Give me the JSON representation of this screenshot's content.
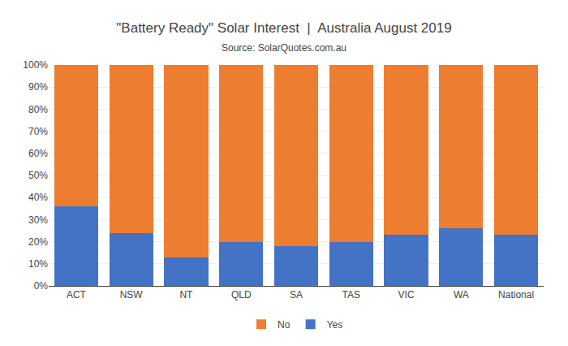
{
  "chart_data": {
    "type": "bar",
    "stacked": true,
    "title": "\"Battery Ready\" Solar Interest  |  Australia August 2019",
    "subtitle": "Source: SolarQuotes.com.au",
    "categories": [
      "ACT",
      "NSW",
      "NT",
      "QLD",
      "SA",
      "TAS",
      "VIC",
      "WA",
      "National"
    ],
    "series": [
      {
        "name": "Yes",
        "color": "#4472C4",
        "values": [
          36,
          24,
          13,
          20,
          18,
          20,
          23,
          26,
          23
        ]
      },
      {
        "name": "No",
        "color": "#ED7D31",
        "values": [
          64,
          76,
          87,
          80,
          82,
          80,
          77,
          74,
          77
        ]
      }
    ],
    "ylim": [
      0,
      100
    ],
    "yticks": [
      {
        "value": 0,
        "label": "0%"
      },
      {
        "value": 10,
        "label": "10%"
      },
      {
        "value": 20,
        "label": "20%"
      },
      {
        "value": 30,
        "label": "30%"
      },
      {
        "value": 40,
        "label": "40%"
      },
      {
        "value": 50,
        "label": "50%"
      },
      {
        "value": 60,
        "label": "60%"
      },
      {
        "value": 70,
        "label": "70%"
      },
      {
        "value": 80,
        "label": "80%"
      },
      {
        "value": 90,
        "label": "90%"
      },
      {
        "value": 100,
        "label": "100%"
      }
    ],
    "grid": true,
    "legend": "bottom"
  }
}
